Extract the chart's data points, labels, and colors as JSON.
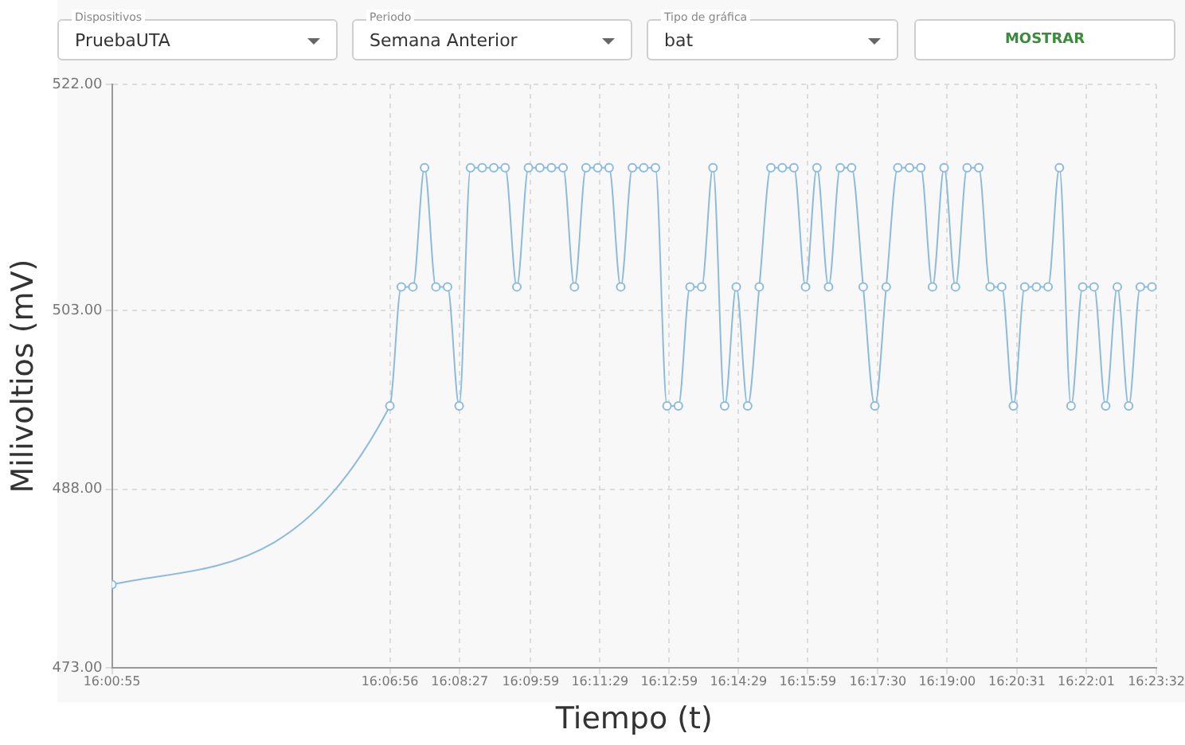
{
  "chart_data": {
    "type": "line",
    "annotations": [
      "Dispositivos",
      "PruebaUTA",
      "Periodo",
      "Semana Anterior",
      "Tipo de gráfica",
      "bat",
      "MOSTRAR"
    ],
    "xlabel": "Tiempo (t)",
    "ylabel": "Milivoltios (mV)",
    "xlim": [
      16.0153,
      16.3922
    ],
    "xticks": [
      {
        "value": 16.0153,
        "label": "16:00:55"
      },
      {
        "value": 16.1156,
        "label": "16:06:56"
      },
      {
        "value": 16.1408,
        "label": "16:08:27"
      },
      {
        "value": 16.1664,
        "label": "16:09:59"
      },
      {
        "value": 16.1914,
        "label": "16:11:29"
      },
      {
        "value": 16.2164,
        "label": "16:12:59"
      },
      {
        "value": 16.2414,
        "label": "16:14:29"
      },
      {
        "value": 16.2664,
        "label": "16:15:59"
      },
      {
        "value": 16.2917,
        "label": "16:17:30"
      },
      {
        "value": 16.3167,
        "label": "16:19:00"
      },
      {
        "value": 16.3419,
        "label": "16:20:31"
      },
      {
        "value": 16.3669,
        "label": "16:22:01"
      },
      {
        "value": 16.3922,
        "label": "16:23:32"
      }
    ],
    "ylim": [
      473,
      522
    ],
    "yticks": [
      {
        "value": 473,
        "label": "473.00"
      },
      {
        "value": 488,
        "label": "488.00"
      },
      {
        "value": 503,
        "label": "503.00"
      },
      {
        "value": 522,
        "label": "522.00"
      }
    ],
    "grid": true,
    "marker": "circle",
    "line_style": "solid",
    "series": [
      {
        "color": "#8dbbdd",
        "x": [
          16.0153,
          16.1156,
          16.1197,
          16.1239,
          16.1281,
          16.1322,
          16.1364,
          16.1406,
          16.1447,
          16.1489,
          16.1531,
          16.1572,
          16.1614,
          16.1656,
          16.1697,
          16.1739,
          16.1781,
          16.1822,
          16.1864,
          16.1906,
          16.1947,
          16.1989,
          16.2031,
          16.2072,
          16.2114,
          16.2156,
          16.2197,
          16.2239,
          16.2281,
          16.2322,
          16.2364,
          16.2406,
          16.2447,
          16.2489,
          16.2531,
          16.2572,
          16.2614,
          16.2656,
          16.2697,
          16.2739,
          16.2781,
          16.2822,
          16.2864,
          16.2906,
          16.2947,
          16.2989,
          16.3031,
          16.3072,
          16.3114,
          16.3156,
          16.3197,
          16.3239,
          16.3281,
          16.3322,
          16.3364,
          16.3406,
          16.3447,
          16.3489,
          16.3531,
          16.3572,
          16.3614,
          16.3656,
          16.3697,
          16.3739,
          16.3781,
          16.3822,
          16.3864,
          16.3906
        ],
        "values": [
          480,
          495,
          505,
          505,
          515,
          505,
          505,
          495,
          515,
          515,
          515,
          515,
          505,
          515,
          515,
          515,
          515,
          505,
          515,
          515,
          515,
          505,
          515,
          515,
          515,
          495,
          495,
          505,
          505,
          515,
          495,
          505,
          495,
          505,
          515,
          515,
          515,
          505,
          515,
          505,
          515,
          515,
          505,
          495,
          505,
          515,
          515,
          515,
          505,
          515,
          505,
          515,
          515,
          505,
          505,
          495,
          505,
          505,
          505,
          515,
          495,
          505,
          505,
          495,
          505,
          495,
          505,
          505
        ]
      }
    ]
  }
}
